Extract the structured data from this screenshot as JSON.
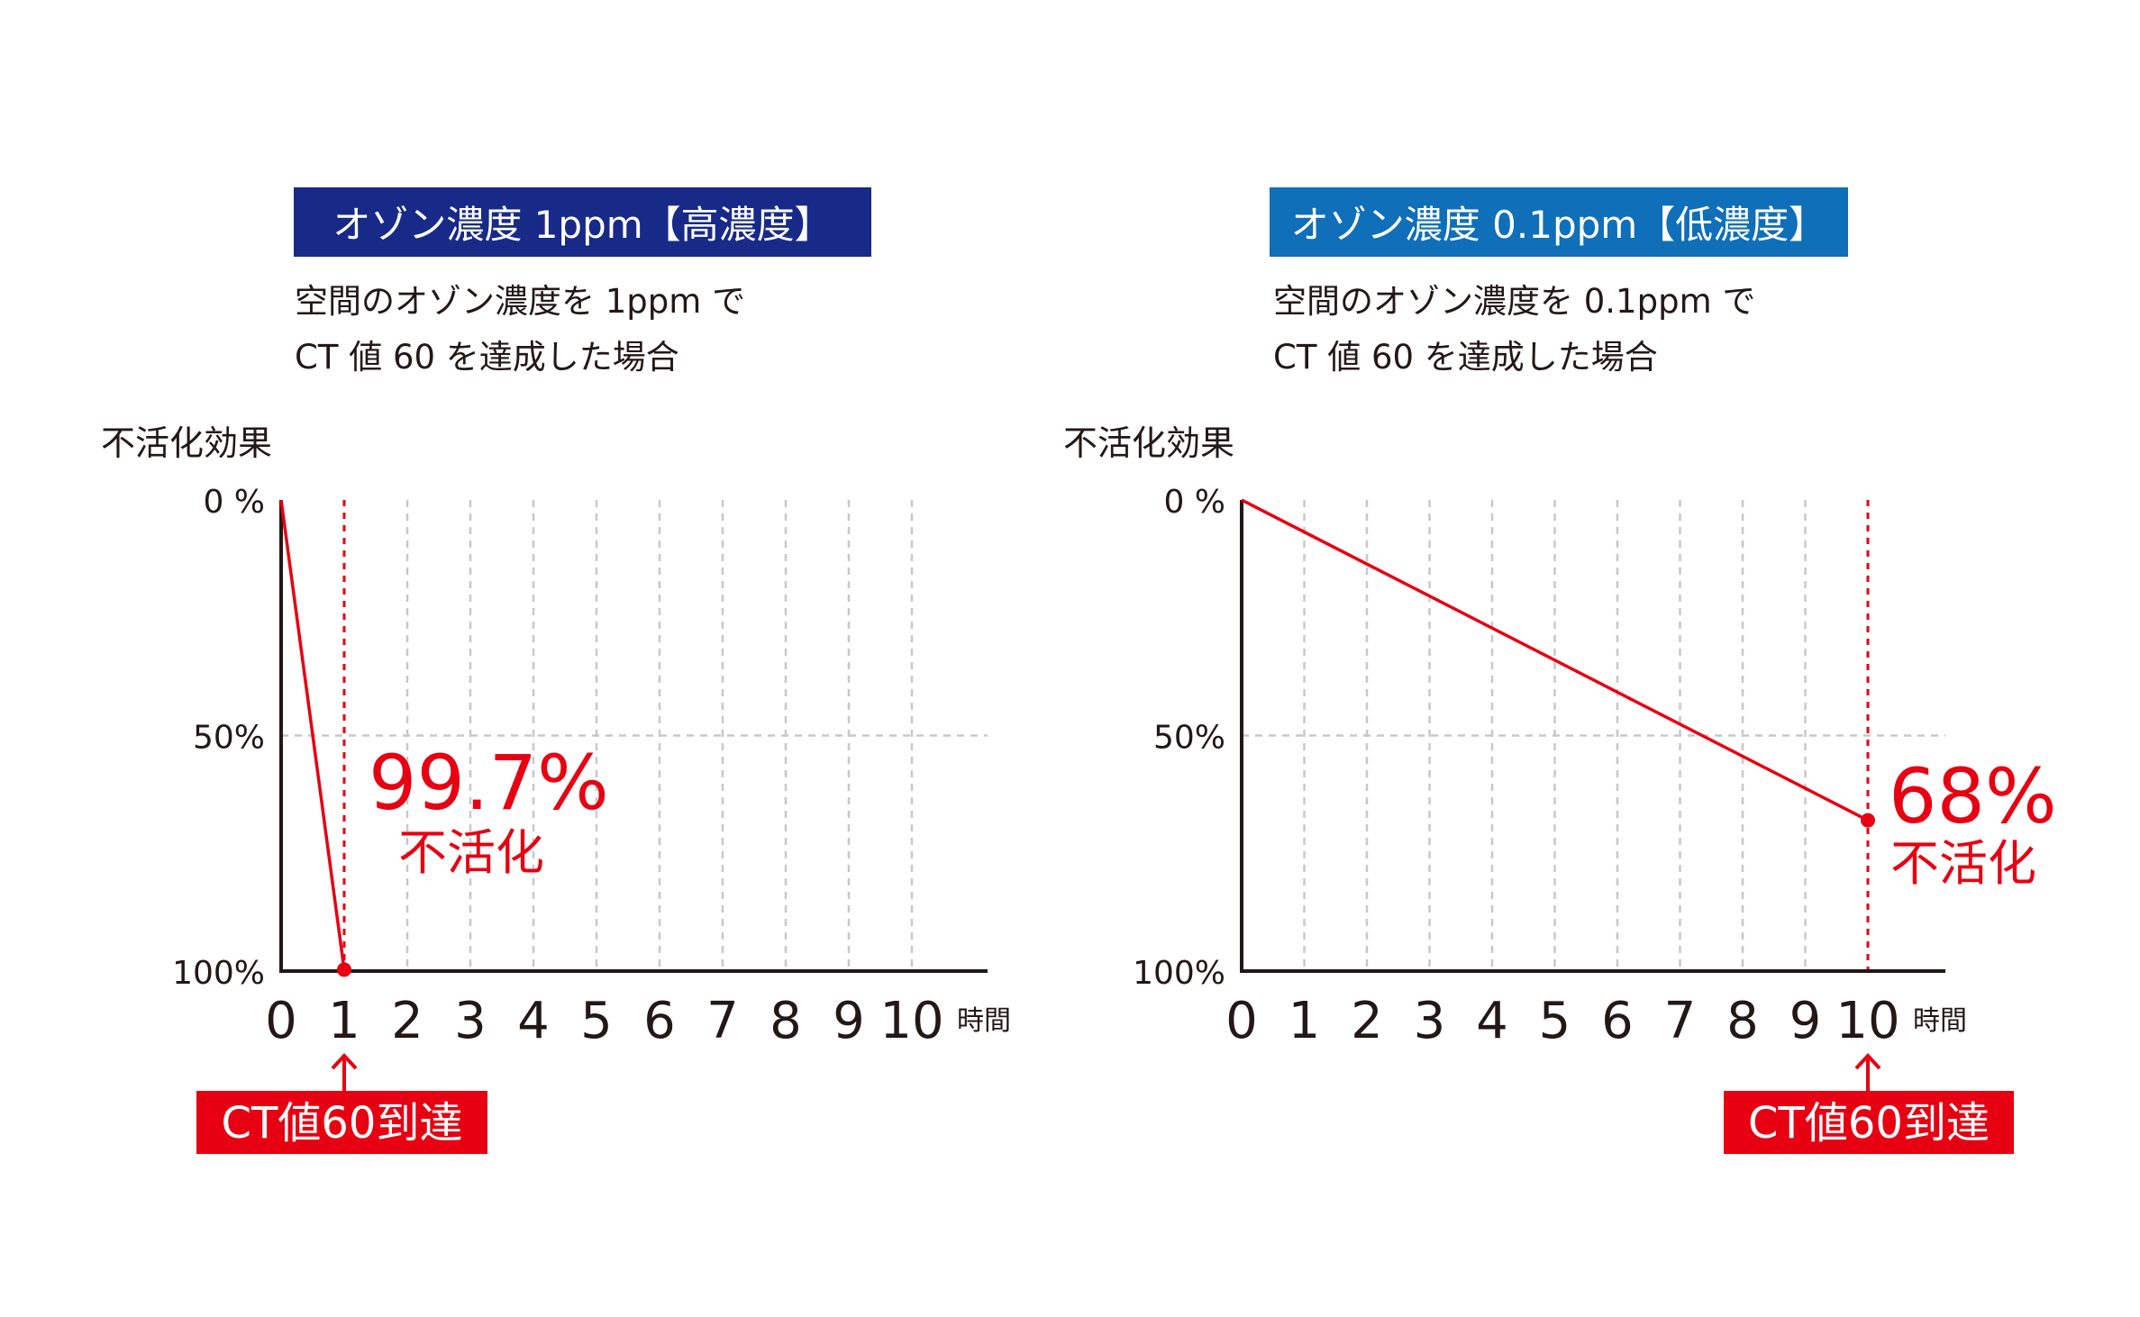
{
  "colors": {
    "high_title_bg": "#172a88",
    "low_title_bg": "#0f6fb8",
    "accent_red": "#e60012",
    "axis": "#231815",
    "grid": "#c8c8c8"
  },
  "panels": [
    {
      "title": "オゾン濃度 1ppm【高濃度】",
      "desc_line1": "空間のオゾン濃度を 1ppm で",
      "desc_line2": "CT 値 60 を達成した場合"
    },
    {
      "title": "オゾン濃度 0.1ppm【低濃度】",
      "desc_line1": "空間のオゾン濃度を 0.1ppm で",
      "desc_line2": "CT 値 60 を達成した場合"
    }
  ],
  "chart_data": [
    {
      "type": "line",
      "ylabel": "不活化効果",
      "xlabel": "時間",
      "x_ticks": [
        "0",
        "1",
        "2",
        "3",
        "4",
        "5",
        "6",
        "7",
        "8",
        "9",
        "10"
      ],
      "y_ticks": [
        "0 %",
        "50%",
        "100%"
      ],
      "y_tick_values": [
        0,
        50,
        100
      ],
      "xlim": [
        0,
        10
      ],
      "ylim": [
        0,
        100
      ],
      "y_inverted": true,
      "grid": true,
      "series": [
        {
          "x": [
            0,
            1
          ],
          "y": [
            0,
            99.7
          ]
        }
      ],
      "marker_x": 1,
      "annotation_value": "99.7%",
      "annotation_label": "不活化",
      "callout": "CT値60到達"
    },
    {
      "type": "line",
      "ylabel": "不活化効果",
      "xlabel": "時間",
      "x_ticks": [
        "0",
        "1",
        "2",
        "3",
        "4",
        "5",
        "6",
        "7",
        "8",
        "9",
        "10"
      ],
      "y_ticks": [
        "0 %",
        "50%",
        "100%"
      ],
      "y_tick_values": [
        0,
        50,
        100
      ],
      "xlim": [
        0,
        10
      ],
      "ylim": [
        0,
        100
      ],
      "y_inverted": true,
      "grid": true,
      "series": [
        {
          "x": [
            0,
            10
          ],
          "y": [
            0,
            68
          ]
        }
      ],
      "marker_x": 10,
      "annotation_value": "68%",
      "annotation_label": "不活化",
      "callout": "CT値60到達"
    }
  ]
}
